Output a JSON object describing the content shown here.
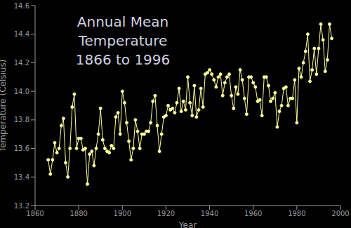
{
  "chart_data": {
    "type": "line",
    "title": "Annual Mean Temperature",
    "subtitle": "1866 to 1996",
    "x_label": "Year",
    "y_label": "Temperature (Celsius)",
    "x": [
      1866,
      1867,
      1868,
      1869,
      1870,
      1871,
      1872,
      1873,
      1874,
      1875,
      1876,
      1877,
      1878,
      1879,
      1880,
      1881,
      1882,
      1883,
      1884,
      1885,
      1886,
      1887,
      1888,
      1889,
      1890,
      1891,
      1892,
      1893,
      1894,
      1895,
      1896,
      1897,
      1898,
      1899,
      1900,
      1901,
      1902,
      1903,
      1904,
      1905,
      1906,
      1907,
      1908,
      1909,
      1910,
      1911,
      1912,
      1913,
      1914,
      1915,
      1916,
      1917,
      1918,
      1919,
      1920,
      1921,
      1922,
      1923,
      1924,
      1925,
      1926,
      1927,
      1928,
      1929,
      1930,
      1931,
      1932,
      1933,
      1934,
      1935,
      1936,
      1937,
      1938,
      1939,
      1940,
      1941,
      1942,
      1943,
      1944,
      1945,
      1946,
      1947,
      1948,
      1949,
      1950,
      1951,
      1952,
      1953,
      1954,
      1955,
      1956,
      1957,
      1958,
      1959,
      1960,
      1961,
      1962,
      1963,
      1964,
      1965,
      1966,
      1967,
      1968,
      1969,
      1970,
      1971,
      1972,
      1973,
      1974,
      1975,
      1976,
      1977,
      1978,
      1979,
      1980,
      1981,
      1982,
      1983,
      1984,
      1985,
      1986,
      1987,
      1988,
      1989,
      1990,
      1991,
      1992,
      1993,
      1994,
      1995,
      1996
    ],
    "series": [
      {
        "name": "Annual Mean Temperature",
        "color": "#ffff99",
        "marker": "circle",
        "values": [
          13.52,
          13.42,
          13.52,
          13.64,
          13.57,
          13.6,
          13.76,
          13.81,
          13.5,
          13.4,
          13.6,
          13.89,
          13.98,
          13.6,
          13.67,
          13.67,
          13.59,
          13.6,
          13.35,
          13.56,
          13.58,
          13.48,
          13.6,
          13.7,
          13.88,
          13.66,
          13.6,
          13.58,
          13.57,
          13.62,
          13.6,
          13.82,
          13.85,
          13.7,
          14.0,
          13.92,
          13.78,
          13.65,
          13.52,
          13.6,
          13.8,
          13.72,
          13.6,
          13.7,
          13.7,
          13.72,
          13.72,
          13.78,
          13.93,
          13.97,
          13.76,
          13.58,
          13.7,
          13.82,
          13.83,
          13.9,
          13.87,
          13.88,
          13.85,
          13.92,
          14.02,
          13.86,
          13.93,
          13.87,
          14.1,
          13.92,
          13.83,
          14.04,
          13.82,
          13.87,
          14.02,
          13.89,
          14.12,
          14.13,
          14.15,
          14.12,
          14.08,
          14.03,
          14.1,
          14.12,
          13.97,
          14.06,
          14.1,
          14.12,
          13.97,
          13.88,
          14.03,
          13.98,
          14.15,
          14.08,
          13.95,
          13.84,
          14.1,
          14.1,
          14.06,
          14.03,
          13.93,
          13.94,
          13.83,
          14.1,
          14.1,
          14.04,
          13.93,
          13.95,
          13.99,
          13.75,
          13.86,
          13.9,
          14.02,
          14.03,
          13.9,
          13.95,
          13.95,
          14.08,
          13.78,
          14.16,
          14.1,
          14.2,
          14.28,
          14.4,
          14.07,
          14.15,
          14.3,
          14.12,
          14.3,
          14.47,
          14.36,
          14.14,
          14.22,
          14.47,
          14.37
        ]
      }
    ],
    "xlim": [
      1860,
      2000
    ],
    "xticks": [
      1860,
      1880,
      1900,
      1920,
      1940,
      1960,
      1980,
      2000
    ],
    "ylim": [
      13.2,
      14.6
    ],
    "yticks": [
      13.2,
      13.4,
      13.6,
      13.8,
      {
        "value": 14,
        "label": "14.0"
      },
      14.2,
      14.4,
      14.6
    ],
    "grid": false
  }
}
